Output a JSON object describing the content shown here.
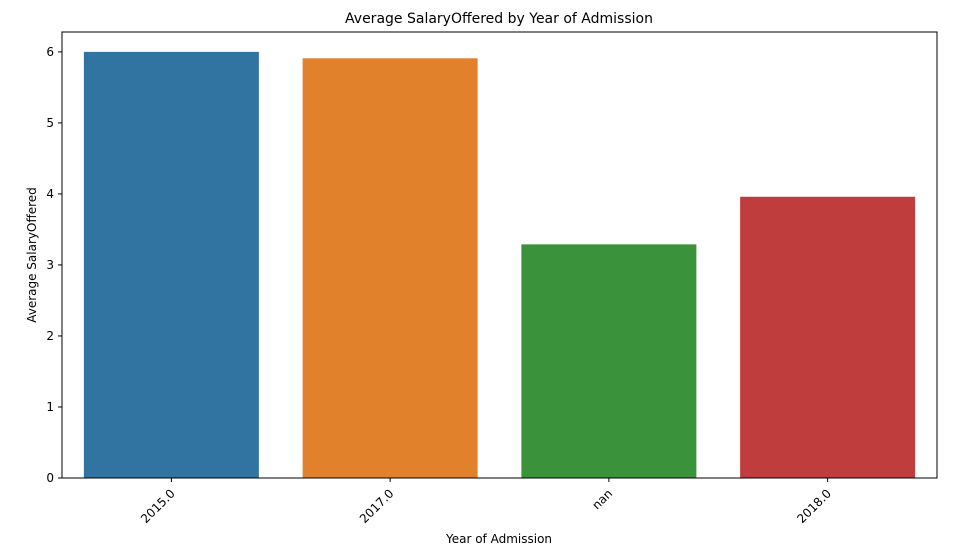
{
  "chart_data": {
    "type": "bar",
    "title": "Average SalaryOffered by Year of Admission",
    "xlabel": "Year of Admission",
    "ylabel": "Average SalaryOffered",
    "categories": [
      "2015.0",
      "2017.0",
      "nan",
      "2018.0"
    ],
    "values": [
      6.0,
      5.91,
      3.29,
      3.96
    ],
    "colors": [
      "#3274a1",
      "#e1812c",
      "#3a923a",
      "#c03d3e"
    ],
    "ylim": [
      0,
      6.28
    ],
    "yticks": [
      0,
      1,
      2,
      3,
      4,
      5,
      6
    ],
    "grid": false,
    "legend": "none"
  }
}
